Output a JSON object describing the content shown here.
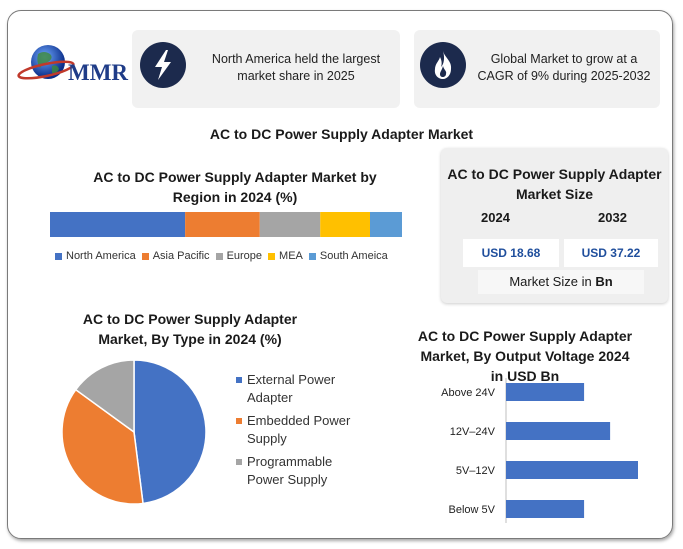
{
  "brand": {
    "logo_text": "MMR"
  },
  "highlights": [
    {
      "icon": "lightning-icon",
      "text_line1": "North America held the largest",
      "text_line2": "market share in 2025"
    },
    {
      "icon": "flame-icon",
      "text_line1": "Global Market to grow at a",
      "text_line2": "CAGR of 9% during 2025-2032"
    }
  ],
  "main_title": "AC to DC Power Supply Adapter Market",
  "region_chart": {
    "title_line1": "AC to DC Power Supply Adapter Market by",
    "title_line2": "Region in 2024 (%)"
  },
  "type_chart": {
    "title_line1": "AC to DC Power Supply Adapter",
    "title_line2": "Market, By Type in 2024 (%)"
  },
  "voltage_chart": {
    "title_line1": "AC to DC Power Supply Adapter",
    "title_line2": "Market, By Output Voltage 2024",
    "title_line3": "in USD Bn"
  },
  "market_size": {
    "title_line1": "AC to DC Power Supply Adapter",
    "title_line2": "Market Size",
    "year1": "2024",
    "year2": "2032",
    "value1": "USD 18.68",
    "value2": "USD 37.22",
    "footer_prefix": "Market Size in ",
    "footer_unit": "Bn"
  },
  "colors": {
    "blue": "#4472c4",
    "orange": "#ed7d31",
    "gray": "#a5a5a5",
    "yellow": "#ffc000",
    "lightblue": "#5b9bd5",
    "dark_circle": "#1c2a4d"
  },
  "chart_data": [
    {
      "type": "bar",
      "orientation": "horizontal-stacked",
      "categories": [
        "North America",
        "Asia Pacific",
        "Europe",
        "MEA",
        "South Ameica"
      ],
      "values": [
        38,
        21,
        17,
        14,
        9
      ],
      "colors": [
        "#4472c4",
        "#ed7d31",
        "#a5a5a5",
        "#ffc000",
        "#5b9bd5"
      ],
      "legend_position": "bottom"
    },
    {
      "type": "pie",
      "categories": [
        "External Power Adapter",
        "Embedded Power Supply",
        "Programmable Power Supply"
      ],
      "values": [
        48,
        37,
        15
      ],
      "colors": [
        "#4472c4",
        "#ed7d31",
        "#a5a5a5"
      ],
      "legend_position": "right"
    },
    {
      "type": "bar",
      "orientation": "horizontal",
      "categories": [
        "Above 24V",
        "12V–24V",
        "5V–12V",
        "Below 5V"
      ],
      "values": [
        4.2,
        5.6,
        7.1,
        4.2
      ],
      "colors": [
        "#4472c4"
      ],
      "grid": false
    }
  ]
}
